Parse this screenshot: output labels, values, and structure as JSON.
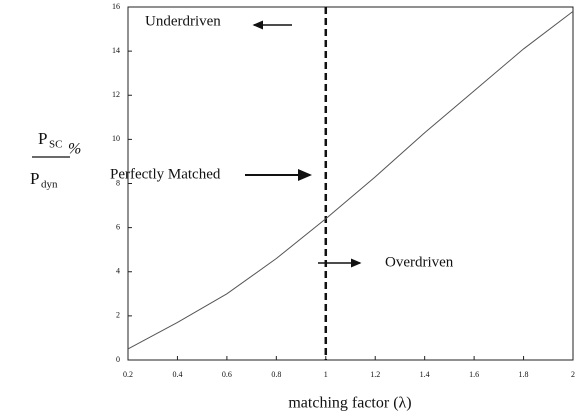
{
  "chart_data": {
    "type": "line",
    "xlabel": "matching factor  (λ)",
    "ylabel": {
      "numerator": "P",
      "numerator_sub": "SC",
      "denominator": "P",
      "denominator_sub": "dyn",
      "suffix": "%"
    },
    "x": [
      0.2,
      0.4,
      0.6,
      0.8,
      1.0,
      1.2,
      1.4,
      1.6,
      1.8,
      2.0
    ],
    "series": [
      {
        "color": "#555555",
        "values": [
          0.5,
          1.7,
          3.0,
          4.6,
          6.4,
          8.3,
          10.3,
          12.2,
          14.1,
          15.8
        ]
      }
    ],
    "xlim": [
      0.2,
      2
    ],
    "xticks": [
      0.2,
      0.4,
      0.6,
      0.8,
      1,
      1.2,
      1.4,
      1.6,
      1.8,
      2
    ],
    "ylim": [
      0,
      16
    ],
    "yticks": [
      0,
      2,
      4,
      6,
      8,
      10,
      12,
      14,
      16
    ],
    "vline": 1,
    "annotations": [
      "Underdriven",
      "Perfectly Matched",
      "Overdriven"
    ]
  }
}
